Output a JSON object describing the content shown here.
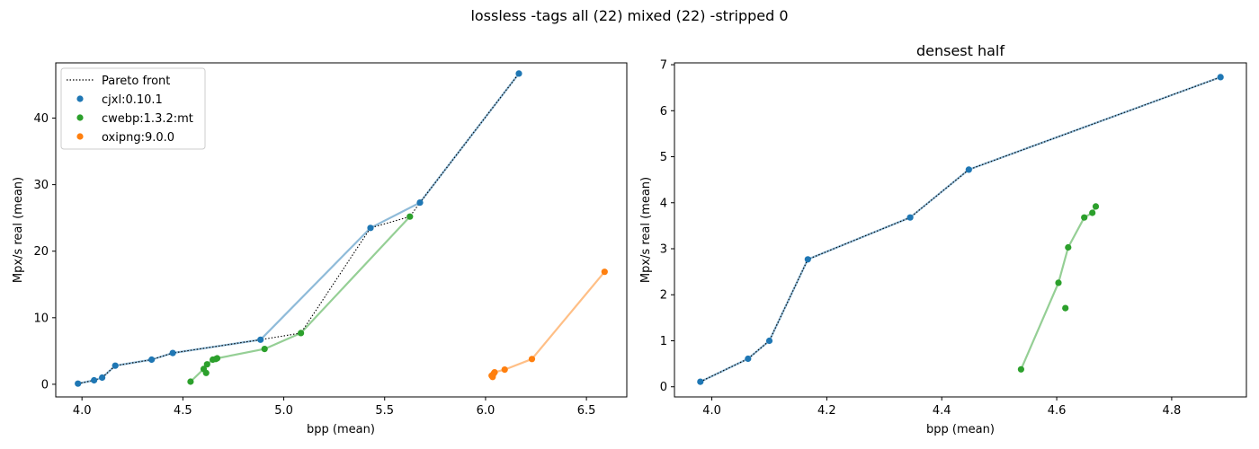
{
  "figure": {
    "suptitle": "lossless -tags all (22) mixed (22) -stripped 0"
  },
  "legend": {
    "pareto_label": "Pareto front",
    "entries": [
      {
        "name": "cjxl:0.10.1",
        "color": "#1f77b4"
      },
      {
        "name": "cwebp:1.3.2:mt",
        "color": "#2ca02c"
      },
      {
        "name": "oxipng:9.0.0",
        "color": "#ff7f0e"
      }
    ]
  },
  "chart_data": [
    {
      "type": "scatter",
      "title": "",
      "xlabel": "bpp (mean)",
      "ylabel": "Mpx/s real (mean)",
      "xlim": [
        3.87,
        6.7
      ],
      "ylim": [
        -1.9,
        48.3
      ],
      "xticks": [
        4.0,
        4.5,
        5.0,
        5.5,
        6.0,
        6.5
      ],
      "xtick_labels": [
        "4.0",
        "4.5",
        "5.0",
        "5.5",
        "6.0",
        "6.5"
      ],
      "yticks": [
        0,
        10,
        20,
        30,
        40
      ],
      "ytick_labels": [
        "0",
        "10",
        "20",
        "30",
        "40"
      ],
      "legend_position": "top-left",
      "series": [
        {
          "name": "cjxl:0.10.1",
          "color": "#1f77b4",
          "points": [
            [
              3.98,
              0.1
            ],
            [
              4.06,
              0.6
            ],
            [
              4.1,
              1.0
            ],
            [
              4.165,
              2.8
            ],
            [
              4.345,
              3.7
            ],
            [
              4.45,
              4.7
            ],
            [
              4.885,
              6.7
            ],
            [
              5.43,
              23.5
            ],
            [
              5.675,
              27.3
            ],
            [
              6.165,
              46.7
            ]
          ],
          "line": [
            [
              3.98,
              0.1
            ],
            [
              4.06,
              0.6
            ],
            [
              4.1,
              1.0
            ],
            [
              4.165,
              2.8
            ],
            [
              4.345,
              3.7
            ],
            [
              4.45,
              4.7
            ],
            [
              4.885,
              6.7
            ],
            [
              5.43,
              23.5
            ],
            [
              5.675,
              27.3
            ],
            [
              6.165,
              46.7
            ]
          ]
        },
        {
          "name": "cwebp:1.3.2:mt",
          "color": "#2ca02c",
          "points": [
            [
              4.538,
              0.4
            ],
            [
              4.603,
              2.3
            ],
            [
              4.615,
              1.7
            ],
            [
              4.62,
              3.0
            ],
            [
              4.648,
              3.7
            ],
            [
              4.663,
              3.8
            ],
            [
              4.67,
              3.9
            ],
            [
              4.905,
              5.3
            ],
            [
              5.085,
              7.7
            ],
            [
              5.625,
              25.2
            ]
          ],
          "line": [
            [
              4.538,
              0.4
            ],
            [
              4.603,
              2.3
            ],
            [
              4.62,
              3.0
            ],
            [
              4.648,
              3.7
            ],
            [
              4.663,
              3.8
            ],
            [
              4.67,
              3.9
            ],
            [
              4.905,
              5.3
            ],
            [
              5.085,
              7.7
            ],
            [
              5.625,
              25.2
            ]
          ]
        },
        {
          "name": "oxipng:9.0.0",
          "color": "#ff7f0e",
          "points": [
            [
              6.03,
              1.3
            ],
            [
              6.035,
              1.1
            ],
            [
              6.04,
              1.6
            ],
            [
              6.045,
              1.8
            ],
            [
              6.095,
              2.2
            ],
            [
              6.23,
              3.8
            ],
            [
              6.59,
              16.9
            ]
          ],
          "line": [
            [
              6.03,
              1.3
            ],
            [
              6.04,
              1.6
            ],
            [
              6.045,
              1.8
            ],
            [
              6.095,
              2.2
            ],
            [
              6.23,
              3.8
            ],
            [
              6.59,
              16.9
            ]
          ]
        }
      ],
      "pareto": [
        [
          3.98,
          0.1
        ],
        [
          4.06,
          0.6
        ],
        [
          4.1,
          1.0
        ],
        [
          4.165,
          2.8
        ],
        [
          4.345,
          3.7
        ],
        [
          4.45,
          4.7
        ],
        [
          4.885,
          6.7
        ],
        [
          5.085,
          7.7
        ],
        [
          5.43,
          23.5
        ],
        [
          5.625,
          25.2
        ],
        [
          5.675,
          27.3
        ],
        [
          6.165,
          46.7
        ]
      ]
    },
    {
      "type": "scatter",
      "title": "densest half",
      "xlabel": "bpp (mean)",
      "ylabel": "Mpx/s real (mean)",
      "xlim": [
        3.935,
        4.93
      ],
      "ylim": [
        -0.22,
        7.04
      ],
      "xticks": [
        4.0,
        4.2,
        4.4,
        4.6,
        4.8
      ],
      "xtick_labels": [
        "4.0",
        "4.2",
        "4.4",
        "4.6",
        "4.8"
      ],
      "yticks": [
        0,
        1,
        2,
        3,
        4,
        5,
        6,
        7
      ],
      "ytick_labels": [
        "0",
        "1",
        "2",
        "3",
        "4",
        "5",
        "6",
        "7"
      ],
      "series": [
        {
          "name": "cjxl:0.10.1",
          "color": "#1f77b4",
          "points": [
            [
              3.98,
              0.11
            ],
            [
              4.063,
              0.61
            ],
            [
              4.1,
              1.0
            ],
            [
              4.167,
              2.77
            ],
            [
              4.345,
              3.68
            ],
            [
              4.447,
              4.72
            ],
            [
              4.885,
              6.73
            ]
          ],
          "line": [
            [
              3.98,
              0.11
            ],
            [
              4.063,
              0.61
            ],
            [
              4.1,
              1.0
            ],
            [
              4.167,
              2.77
            ],
            [
              4.345,
              3.68
            ],
            [
              4.447,
              4.72
            ],
            [
              4.885,
              6.73
            ]
          ]
        },
        {
          "name": "cwebp:1.3.2:mt",
          "color": "#2ca02c",
          "points": [
            [
              4.538,
              0.38
            ],
            [
              4.603,
              2.26
            ],
            [
              4.615,
              1.71
            ],
            [
              4.62,
              3.03
            ],
            [
              4.648,
              3.68
            ],
            [
              4.662,
              3.78
            ],
            [
              4.668,
              3.92
            ]
          ],
          "line": [
            [
              4.538,
              0.38
            ],
            [
              4.603,
              2.26
            ],
            [
              4.62,
              3.03
            ],
            [
              4.648,
              3.68
            ],
            [
              4.662,
              3.78
            ],
            [
              4.668,
              3.92
            ]
          ]
        }
      ],
      "pareto": [
        [
          3.98,
          0.11
        ],
        [
          4.063,
          0.61
        ],
        [
          4.1,
          1.0
        ],
        [
          4.167,
          2.77
        ],
        [
          4.345,
          3.68
        ],
        [
          4.447,
          4.72
        ],
        [
          4.885,
          6.73
        ]
      ]
    }
  ]
}
